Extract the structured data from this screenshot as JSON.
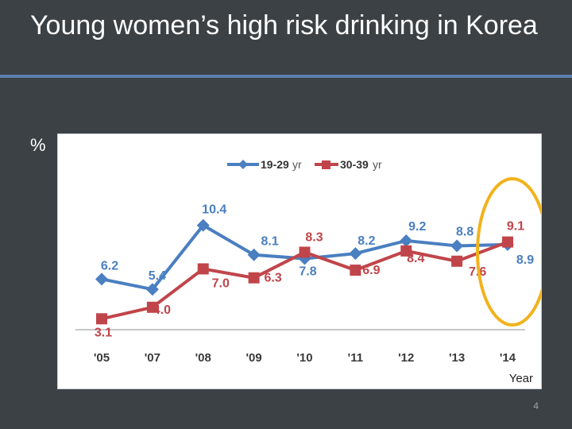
{
  "slide": {
    "title": "Young women’s high risk drinking in Korea",
    "page_number": "4"
  },
  "colors": {
    "background": "#3b4145",
    "title_rule": "#5b7fb0",
    "highlight_ellipse": "#f2b21b"
  },
  "chart_data": {
    "type": "line",
    "title": "",
    "ylabel": "%",
    "xlabel": "Year",
    "categories": [
      "'05",
      "'07",
      "'08",
      "'09",
      "'10",
      "'11",
      "'12",
      "'13",
      "'14"
    ],
    "ylim": [
      2,
      11
    ],
    "grid": false,
    "legend": "top",
    "series": [
      {
        "name": "19-29",
        "legend_suffix": "yr",
        "color": "#4a7fc1",
        "marker": "diamond",
        "values": [
          6.2,
          5.4,
          10.4,
          8.1,
          7.8,
          8.2,
          9.2,
          8.8,
          8.9
        ],
        "labels": [
          "6.2",
          "5.4",
          "10.4",
          "8.1",
          "7.8",
          "8.2",
          "9.2",
          "8.8",
          "8.9"
        ]
      },
      {
        "name": "30-39",
        "legend_suffix": "yr",
        "color": "#c0454a",
        "marker": "square",
        "values": [
          3.1,
          4.0,
          7.0,
          6.3,
          8.3,
          6.9,
          8.4,
          7.6,
          9.1
        ],
        "labels": [
          "3.1",
          "4.0",
          "7.0",
          "6.3",
          "8.3",
          "6.9",
          "8.4",
          "7.6",
          "9.1"
        ]
      }
    ],
    "annotations": [
      {
        "type": "ellipse",
        "target_category": "'14",
        "color": "#f2b21b"
      }
    ]
  }
}
